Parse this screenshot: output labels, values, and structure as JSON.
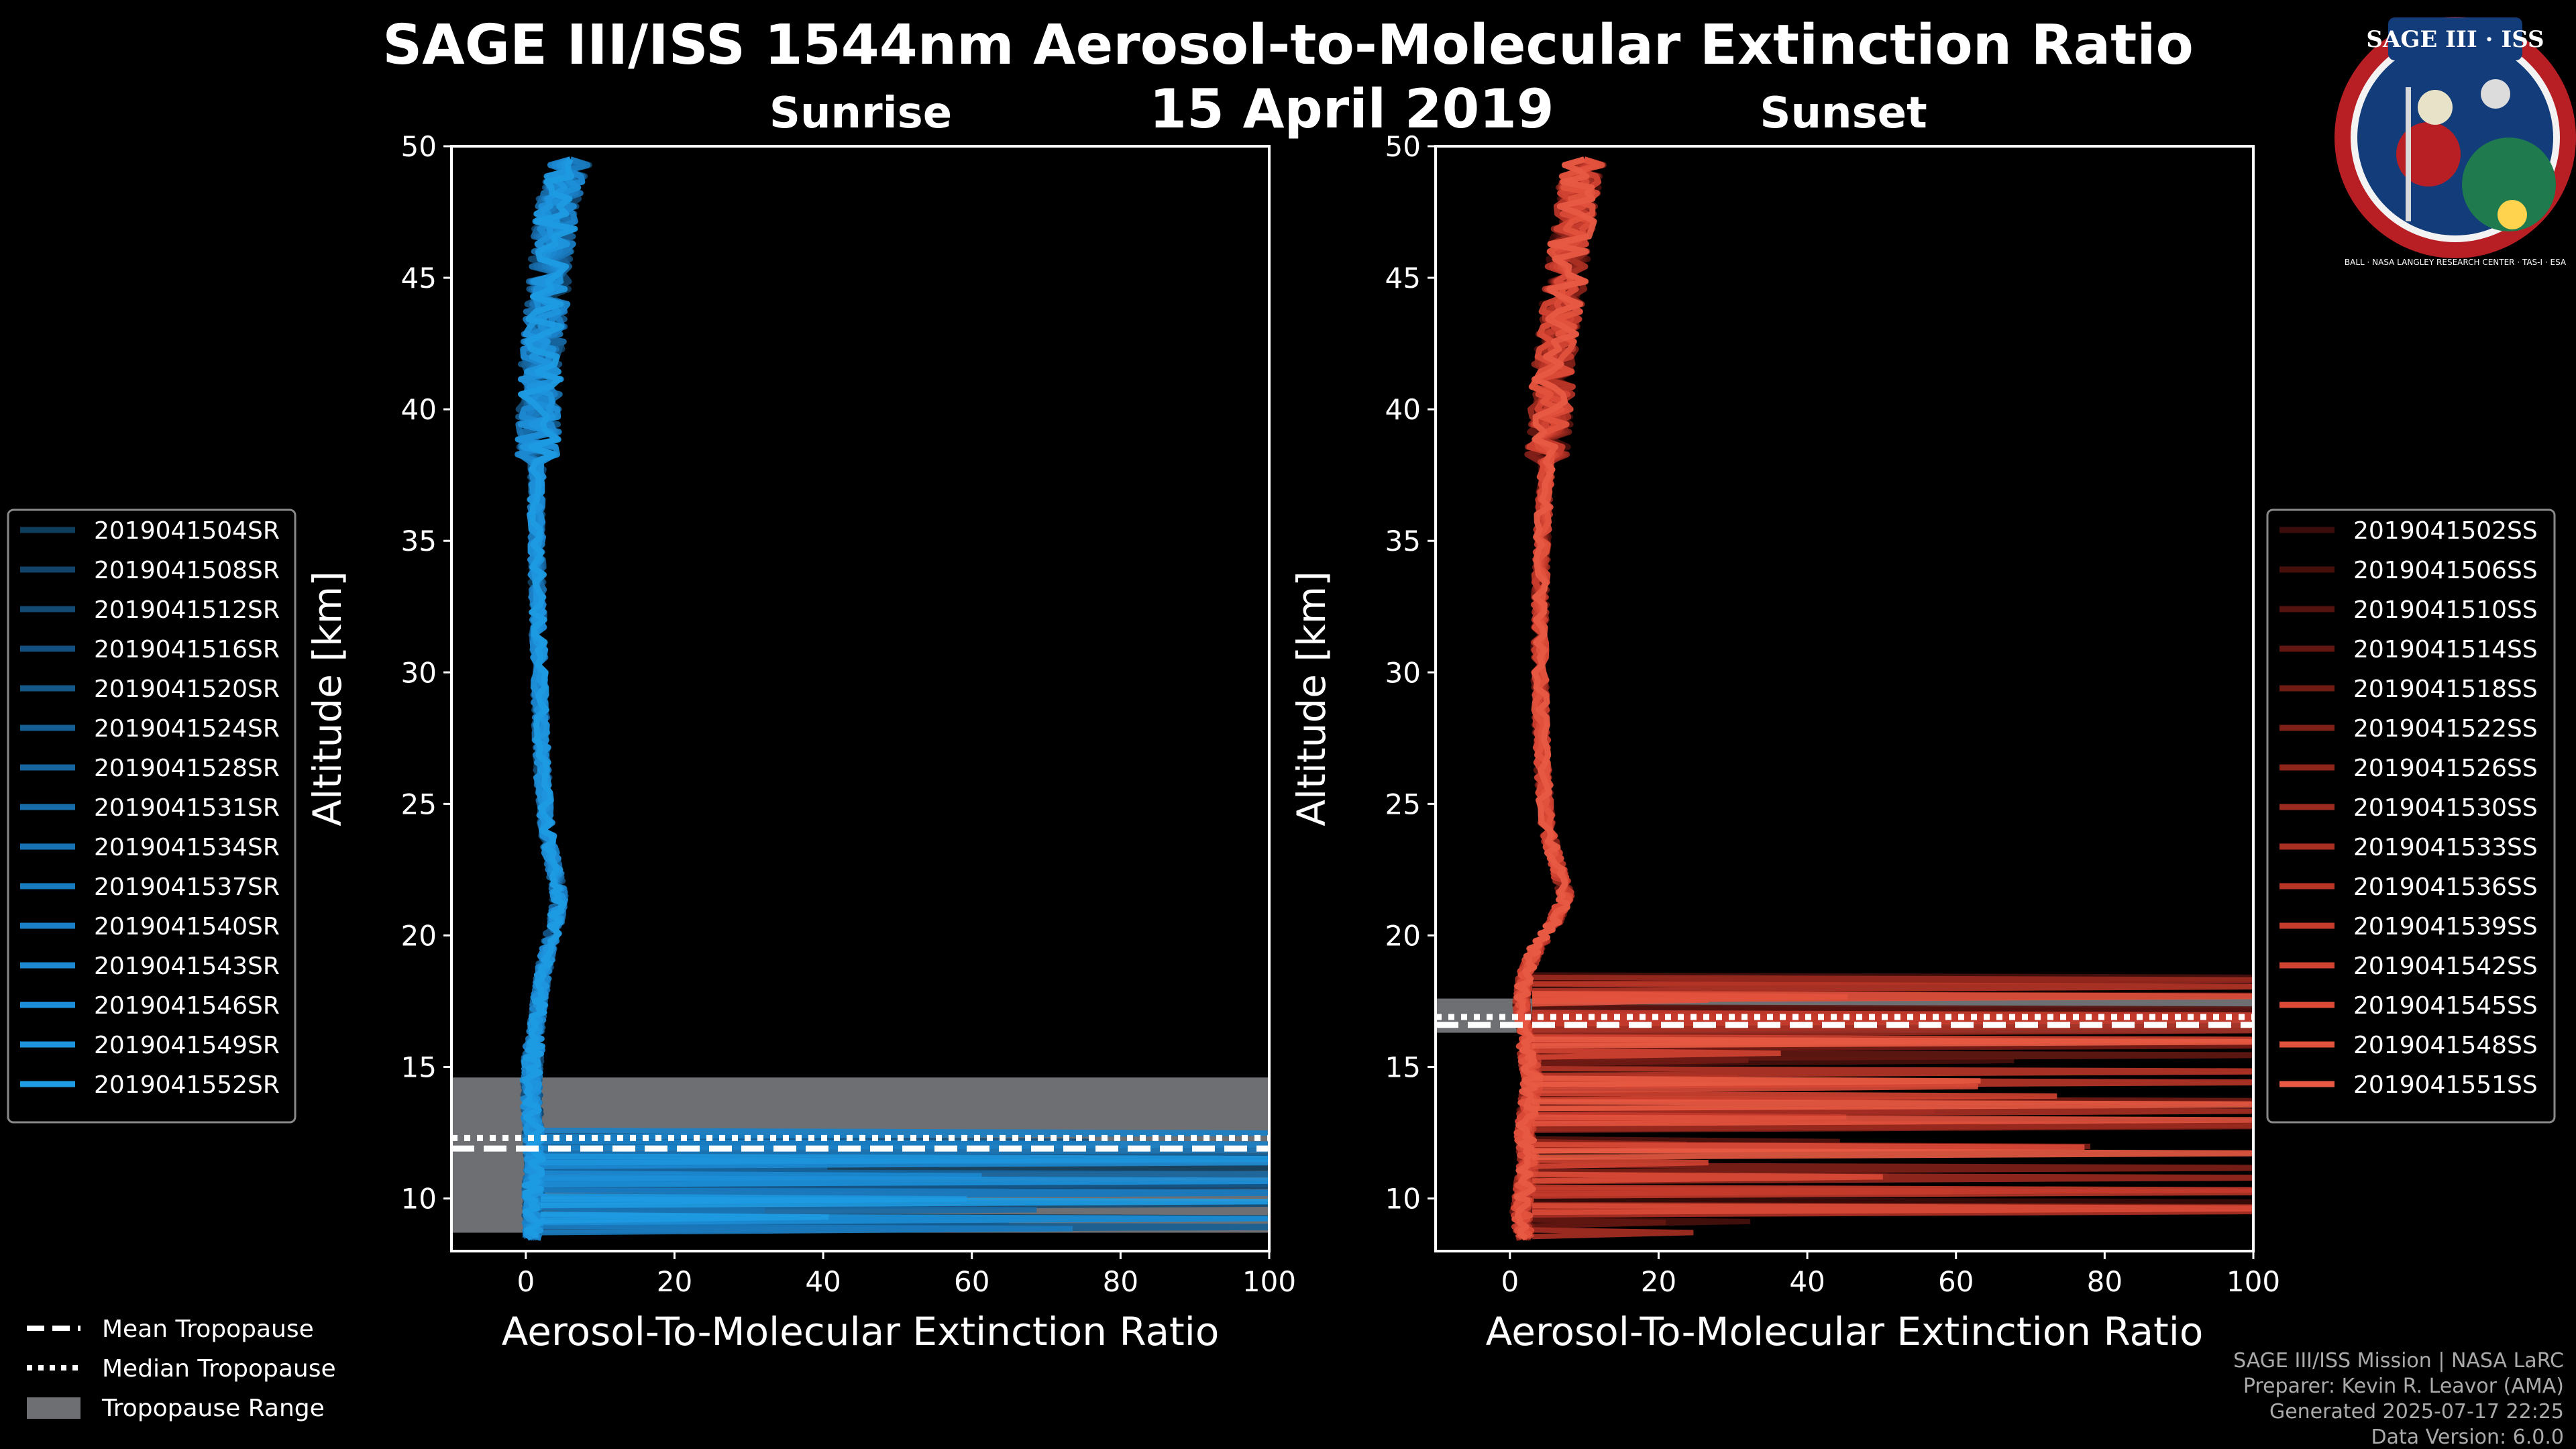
{
  "title": "SAGE III/ISS 1544nm Aerosol-to-Molecular Extinction Ratio",
  "date": "15 April 2019",
  "logo": {
    "top": "SAGE III · ISS",
    "ring": "BALL · NASA LANGLEY RESEARCH CENTER · TAS-I · ESA"
  },
  "credits": [
    "SAGE III/ISS Mission | NASA LaRC",
    "Preparer: Kevin R. Leavor (AMA)",
    "Generated 2025-07-17 22:25",
    "Data Version: 6.0.0"
  ],
  "bottom_legend": {
    "mean": "Mean Tropopause",
    "median": "Median Tropopause",
    "range": "Tropopause Range"
  },
  "chart_data": [
    {
      "type": "line",
      "title": "Sunrise",
      "xlabel": "Aerosol-To-Molecular Extinction Ratio",
      "ylabel": "Altitude [km]",
      "xlim": [
        -10,
        100
      ],
      "ylim": [
        8,
        50
      ],
      "xticks": [
        0,
        20,
        40,
        60,
        80,
        100
      ],
      "yticks": [
        10,
        15,
        20,
        25,
        30,
        35,
        40,
        45,
        50
      ],
      "tropopause": {
        "mean_km": 11.9,
        "median_km": 12.3,
        "range_km": [
          8.7,
          14.6
        ]
      },
      "base_color": "#1e90d6",
      "series_names": [
        "2019041504SR",
        "2019041508SR",
        "2019041512SR",
        "2019041516SR",
        "2019041520SR",
        "2019041524SR",
        "2019041528SR",
        "2019041531SR",
        "2019041534SR",
        "2019041537SR",
        "2019041540SR",
        "2019041543SR",
        "2019041546SR",
        "2019041549SR",
        "2019041552SR"
      ],
      "series_colors": [
        "#0f3d5c",
        "#11436a",
        "#124a74",
        "#13507f",
        "#145789",
        "#155e94",
        "#16659f",
        "#176ca9",
        "#1873b4",
        "#197abe",
        "#1a81c8",
        "#1b88d1",
        "#1c8fd8",
        "#1d95dd",
        "#1e9be2"
      ],
      "profile": {
        "alt": [
          8.5,
          9.5,
          10.5,
          11.5,
          12.5,
          13.5,
          14.5,
          15.5,
          16.5,
          17.5,
          18.5,
          19.5,
          20.5,
          21.5,
          22.5,
          24,
          26,
          28,
          30,
          32,
          34,
          36,
          38,
          40,
          42,
          44,
          46,
          48,
          49.5
        ],
        "ratio": [
          1.0,
          1.0,
          1.0,
          1.2,
          1.0,
          0.8,
          0.7,
          1.0,
          1.4,
          1.8,
          2.3,
          3.0,
          4.0,
          4.5,
          3.8,
          2.8,
          2.3,
          2.0,
          1.8,
          1.6,
          1.5,
          1.4,
          1.5,
          1.8,
          2.2,
          2.8,
          3.5,
          4.5,
          6.0
        ]
      }
    },
    {
      "type": "line",
      "title": "Sunset",
      "xlabel": "Aerosol-To-Molecular Extinction Ratio",
      "ylabel": "Altitude [km]",
      "xlim": [
        -10,
        100
      ],
      "ylim": [
        8,
        50
      ],
      "xticks": [
        0,
        20,
        40,
        60,
        80,
        100
      ],
      "yticks": [
        10,
        15,
        20,
        25,
        30,
        35,
        40,
        45,
        50
      ],
      "tropopause": {
        "mean_km": 16.6,
        "median_km": 16.9,
        "range_km": [
          16.3,
          17.6
        ]
      },
      "base_color": "#e8553e",
      "series_names": [
        "2019041502SS",
        "2019041506SS",
        "2019041510SS",
        "2019041514SS",
        "2019041518SS",
        "2019041522SS",
        "2019041526SS",
        "2019041530SS",
        "2019041533SS",
        "2019041536SS",
        "2019041539SS",
        "2019041542SS",
        "2019041545SS",
        "2019041548SS",
        "2019041551SS"
      ],
      "series_colors": [
        "#3a0c0a",
        "#470f0c",
        "#55130f",
        "#631712",
        "#711b15",
        "#7f2018",
        "#8d251b",
        "#9b2a1f",
        "#a92f23",
        "#b73527",
        "#c53b2c",
        "#d14231",
        "#da4a37",
        "#e2523d",
        "#e85a43"
      ],
      "profile": {
        "alt": [
          8.5,
          9.5,
          10.5,
          11.5,
          12.5,
          13.5,
          14.5,
          15.5,
          16.5,
          17.5,
          18.5,
          19.5,
          20.5,
          21.5,
          22.5,
          24,
          26,
          28,
          30,
          32,
          34,
          36,
          38,
          40,
          42,
          44,
          46,
          48,
          49.5
        ],
        "ratio": [
          2.0,
          1.5,
          2.0,
          2.5,
          2.0,
          2.5,
          3.0,
          2.5,
          2.0,
          1.5,
          2.0,
          3.5,
          6.0,
          7.5,
          6.5,
          5.0,
          4.5,
          4.2,
          4.0,
          4.0,
          4.2,
          4.5,
          5.0,
          5.5,
          6.0,
          7.0,
          8.0,
          9.0,
          10.0
        ]
      }
    }
  ]
}
